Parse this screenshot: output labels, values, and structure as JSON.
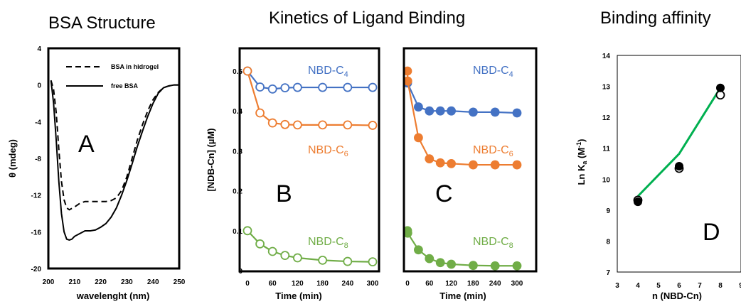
{
  "headings": {
    "a": "BSA Structure",
    "b": "Kinetics of Ligand Binding",
    "c": "Binding affinity"
  },
  "colors": {
    "c4": "#4472C4",
    "c6": "#ED7D31",
    "c8": "#70AD47",
    "fit": "#00B050",
    "black": "#000000"
  },
  "chart_data": [
    {
      "type": "line",
      "panel": "A",
      "xlabel": "wavelenght (nm)",
      "ylabel": "θ (mdeg)",
      "xlim": [
        200,
        250
      ],
      "ylim": [
        -20,
        4
      ],
      "xticks": [
        200,
        210,
        220,
        230,
        240,
        250
      ],
      "yticks": [
        -20,
        -16,
        -12,
        -8,
        -4,
        0,
        4
      ],
      "legend_position": "top-right",
      "series": [
        {
          "name": "BSA in hidrogel",
          "style": "dashed",
          "x": [
            201,
            202,
            203,
            204,
            205,
            206,
            207,
            208,
            210,
            212,
            214,
            216,
            218,
            220,
            222,
            224,
            226,
            228,
            230,
            232,
            234,
            236,
            238,
            240,
            242,
            244,
            246,
            248,
            250
          ],
          "y": [
            0.5,
            -0.5,
            -3,
            -7,
            -10.5,
            -12.5,
            -13.4,
            -13.6,
            -13.3,
            -12.9,
            -12.7,
            -12.7,
            -12.7,
            -12.7,
            -12.7,
            -12.6,
            -12.3,
            -11.5,
            -10,
            -8,
            -6,
            -4.3,
            -2.8,
            -1.6,
            -0.8,
            -0.3,
            -0.1,
            0,
            0
          ]
        },
        {
          "name": "free BSA",
          "style": "solid",
          "x": [
            201,
            202,
            203,
            204,
            205,
            206,
            207,
            208,
            209,
            210,
            212,
            214,
            216,
            218,
            220,
            222,
            224,
            226,
            228,
            230,
            232,
            234,
            236,
            238,
            240,
            242,
            244,
            246,
            248,
            250
          ],
          "y": [
            0.5,
            -2,
            -6,
            -10.5,
            -14,
            -16,
            -16.8,
            -16.9,
            -16.8,
            -16.5,
            -16.2,
            -15.9,
            -15.9,
            -15.8,
            -15.5,
            -15.1,
            -14.4,
            -13.4,
            -12,
            -10.4,
            -8.6,
            -6.7,
            -5,
            -3.4,
            -2,
            -0.9,
            -0.3,
            -0.1,
            0,
            0
          ]
        }
      ],
      "annotation": "A"
    },
    {
      "type": "line",
      "panel": "B",
      "xlabel": "Time (min)",
      "ylabel": "[NDB-Cn] (µM)",
      "xlim": [
        0,
        300
      ],
      "ylim": [
        0,
        0.5
      ],
      "xticks": [
        0,
        60,
        120,
        180,
        240,
        300
      ],
      "yticks": [
        0,
        0.1,
        0.2,
        0.3,
        0.4,
        0.5
      ],
      "marker": "open-circle",
      "series": [
        {
          "name": "NBD-C4",
          "x": [
            0,
            30,
            60,
            90,
            120,
            180,
            240,
            300
          ],
          "y": [
            0.5,
            0.46,
            0.455,
            0.458,
            0.459,
            0.459,
            0.459,
            0.459
          ]
        },
        {
          "name": "NBD-C6",
          "x": [
            0,
            30,
            60,
            90,
            120,
            180,
            240,
            300
          ],
          "y": [
            0.5,
            0.395,
            0.37,
            0.366,
            0.365,
            0.365,
            0.365,
            0.364
          ]
        },
        {
          "name": "NBD-C8",
          "x": [
            0,
            30,
            60,
            90,
            120,
            180,
            240,
            300
          ],
          "y": [
            0.1,
            0.067,
            0.048,
            0.038,
            0.032,
            0.026,
            0.023,
            0.022
          ]
        }
      ],
      "annotation": "B"
    },
    {
      "type": "line",
      "panel": "C",
      "xlabel": "Time (min)",
      "xlim": [
        0,
        300
      ],
      "ylim": [
        0,
        0.5
      ],
      "xticks": [
        0,
        60,
        120,
        180,
        240,
        300
      ],
      "marker": "filled-circle",
      "series": [
        {
          "name": "NBD-C4",
          "x": [
            0,
            30,
            60,
            90,
            120,
            180,
            240,
            300
          ],
          "y": [
            0.47,
            0.41,
            0.4,
            0.4,
            0.4,
            0.397,
            0.397,
            0.395
          ]
        },
        {
          "name": "NBD-C6",
          "x": [
            0,
            0.5,
            30,
            60,
            90,
            120,
            180,
            240,
            300
          ],
          "y": [
            0.5,
            0.475,
            0.333,
            0.28,
            0.27,
            0.268,
            0.265,
            0.265,
            0.265
          ]
        },
        {
          "name": "NBD-C8",
          "x": [
            0,
            0.5,
            30,
            60,
            90,
            120,
            180,
            240,
            300
          ],
          "y": [
            0.1,
            0.094,
            0.052,
            0.03,
            0.02,
            0.016,
            0.013,
            0.012,
            0.012
          ]
        }
      ],
      "annotation": "C"
    },
    {
      "type": "scatter",
      "panel": "D",
      "xlabel": "n (NBD-Cn)",
      "ylabel": "Ln Ka (M-1)",
      "xlim": [
        3,
        9
      ],
      "ylim": [
        7,
        14
      ],
      "xticks": [
        3,
        4,
        5,
        6,
        7,
        8,
        9
      ],
      "yticks": [
        7,
        8,
        9,
        10,
        11,
        12,
        13,
        14
      ],
      "open_points": {
        "x": [
          4,
          6,
          8
        ],
        "y": [
          9.32,
          10.35,
          12.72
        ]
      },
      "filled_points": {
        "x": [
          4,
          6,
          8
        ],
        "y": [
          9.27,
          10.42,
          12.95
        ]
      },
      "fit_line": {
        "x": [
          4,
          6,
          8
        ],
        "y": [
          9.45,
          10.82,
          12.95
        ]
      },
      "annotation": "D"
    }
  ],
  "labels": {
    "panel_a": "A",
    "panel_b": "B",
    "panel_c": "C",
    "panel_d": "D",
    "legend_dashed": "BSA in hidrogel",
    "legend_solid": "free BSA",
    "a_ylabel": "θ (mdeg)",
    "a_xlabel": "wavelenght (nm)",
    "b_ylabel": "[NDB-Cn] (µM)",
    "time_label": "Time (min)",
    "d_xlabel": "n (NBD-Cn)",
    "ndb_base": "NBD-C",
    "sub4": "4",
    "sub6": "6",
    "sub8": "8",
    "d_ylabel_ln": "Ln K",
    "d_ylabel_sub": "a",
    "d_ylabel_unit_open": " (M",
    "d_ylabel_sup": "-1",
    "d_ylabel_close": ")"
  }
}
